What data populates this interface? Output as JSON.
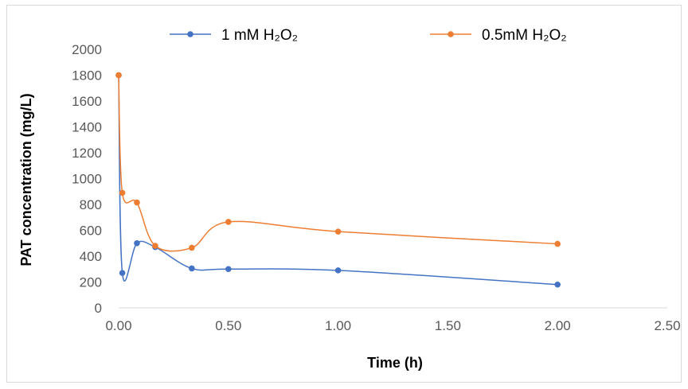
{
  "chart_data": {
    "type": "line",
    "title": "",
    "xlabel": "Time (h)",
    "ylabel": "PAT concentration (mg/L)",
    "xlim": [
      0,
      2.5
    ],
    "ylim": [
      0,
      2000
    ],
    "x_ticks": [
      "0.00",
      "0.50",
      "1.00",
      "1.50",
      "2.00",
      "2.50"
    ],
    "y_ticks": [
      "0",
      "200",
      "400",
      "600",
      "800",
      "1000",
      "1200",
      "1400",
      "1600",
      "1800",
      "2000"
    ],
    "grid": false,
    "smooth": true,
    "legend_position": "top",
    "series": [
      {
        "name": "1 mM H₂O₂",
        "color": "#4472c4",
        "x": [
          0,
          0.0167,
          0.0833,
          0.1667,
          0.3333,
          0.5,
          1.0,
          2.0
        ],
        "y": [
          1800,
          270,
          500,
          470,
          305,
          300,
          290,
          180
        ]
      },
      {
        "name": "0.5mM H₂O₂",
        "color": "#ed7d31",
        "x": [
          0,
          0.0167,
          0.0833,
          0.1667,
          0.3333,
          0.5,
          1.0,
          2.0
        ],
        "y": [
          1800,
          890,
          815,
          480,
          465,
          665,
          590,
          495
        ]
      }
    ]
  }
}
